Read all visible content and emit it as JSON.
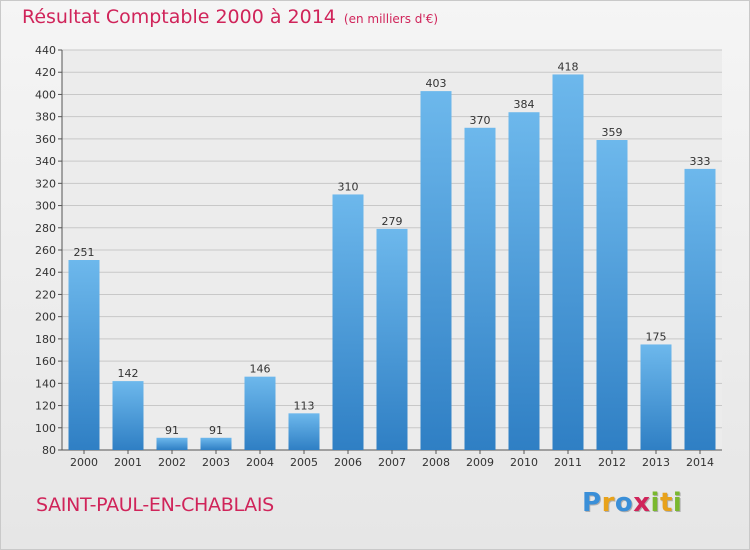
{
  "header": {
    "title": "Résultat Comptable 2000 à 2014",
    "subtitle": "(en milliers d'€)"
  },
  "footer": {
    "place": "SAINT-PAUL-EN-CHABLAIS",
    "logo": {
      "text": "Proxiti",
      "letters": [
        "P",
        "r",
        "o",
        "x",
        "i",
        "t",
        "i"
      ],
      "colors": [
        "#3a8fd8",
        "#e8a21a",
        "#3a8fd8",
        "#d0245a",
        "#7ab82e",
        "#e8a21a",
        "#7ab82e"
      ]
    }
  },
  "colors": {
    "bar_light": "#6db8ec",
    "bar_dark": "#2f7fc4",
    "accent": "#d0245a"
  },
  "chart_data": {
    "type": "bar",
    "title": "Résultat Comptable 2000 à 2014",
    "subtitle": "(en milliers d'€)",
    "xlabel": "",
    "ylabel": "",
    "categories": [
      "2000",
      "2001",
      "2002",
      "2003",
      "2004",
      "2005",
      "2006",
      "2007",
      "2008",
      "2009",
      "2010",
      "2011",
      "2012",
      "2013",
      "2014"
    ],
    "values": [
      251,
      142,
      91,
      91,
      146,
      113,
      310,
      279,
      403,
      370,
      384,
      418,
      359,
      175,
      333
    ],
    "ylim": [
      80,
      440
    ],
    "yticks": [
      80,
      100,
      120,
      140,
      160,
      180,
      200,
      220,
      240,
      260,
      280,
      300,
      320,
      340,
      360,
      380,
      400,
      420,
      440
    ],
    "grid": true,
    "legend": "none"
  }
}
